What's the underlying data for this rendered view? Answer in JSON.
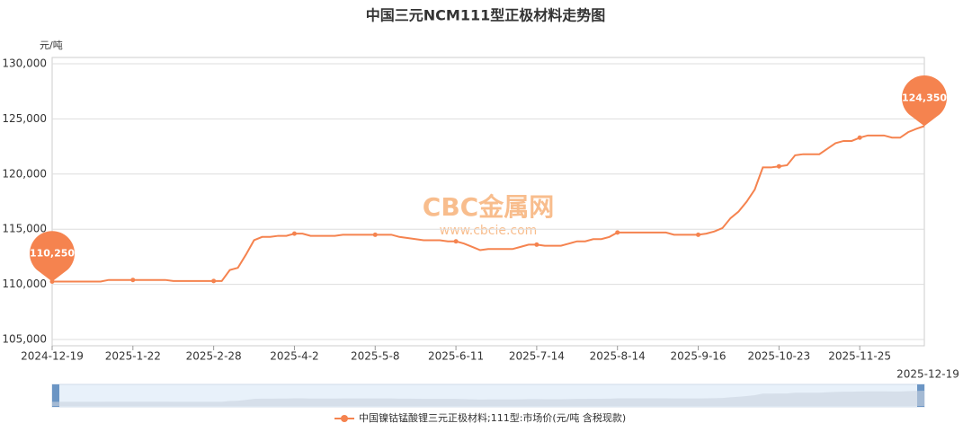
{
  "chart_data": {
    "type": "line",
    "title": "中国三元NCM111型正极材料走势图",
    "y_unit": "元/吨",
    "watermark": "CBC金属网",
    "watermark_url": "www.cbcie.com",
    "grid": true,
    "ylim": [
      105000,
      130000
    ],
    "yticks": [
      {
        "value": 105000,
        "label": "105,000"
      },
      {
        "value": 110000,
        "label": "110,000"
      },
      {
        "value": 115000,
        "label": "115,000"
      },
      {
        "value": 120000,
        "label": "120,000"
      },
      {
        "value": 125000,
        "label": "125,000"
      },
      {
        "value": 130000,
        "label": "130,000"
      }
    ],
    "categories": [
      "2024-12-19",
      null,
      null,
      null,
      null,
      null,
      null,
      null,
      null,
      null,
      "2025-1-22",
      null,
      null,
      null,
      null,
      null,
      null,
      null,
      null,
      null,
      "2025-2-28",
      null,
      null,
      null,
      null,
      null,
      null,
      null,
      null,
      null,
      "2025-4-2",
      null,
      null,
      null,
      null,
      null,
      null,
      null,
      null,
      null,
      "2025-5-8",
      null,
      null,
      null,
      null,
      null,
      null,
      null,
      null,
      null,
      "2025-6-11",
      null,
      null,
      null,
      null,
      null,
      null,
      null,
      null,
      null,
      "2025-7-14",
      null,
      null,
      null,
      null,
      null,
      null,
      null,
      null,
      null,
      "2025-8-14",
      null,
      null,
      null,
      null,
      null,
      null,
      null,
      null,
      null,
      "2025-9-16",
      null,
      null,
      null,
      null,
      null,
      null,
      null,
      null,
      null,
      "2025-10-23",
      null,
      null,
      null,
      null,
      null,
      null,
      null,
      null,
      null,
      "2025-11-25",
      null,
      null,
      null,
      null,
      null,
      null,
      null,
      "2025-12-19"
    ],
    "series": [
      {
        "name": "中国镍钴锰酸锂三元正极材料;111型:市场价(元/吨  含税现款)",
        "color": "#f5834f",
        "values": [
          110250,
          110250,
          110250,
          110250,
          110250,
          110250,
          110250,
          110400,
          110400,
          110400,
          110400,
          110400,
          110400,
          110400,
          110400,
          110300,
          110300,
          110300,
          110300,
          110300,
          110300,
          110300,
          111300,
          111500,
          112700,
          114000,
          114300,
          114300,
          114400,
          114400,
          114600,
          114600,
          114400,
          114400,
          114400,
          114400,
          114500,
          114500,
          114500,
          114500,
          114500,
          114500,
          114500,
          114300,
          114200,
          114100,
          114000,
          114000,
          114000,
          113900,
          113900,
          113700,
          113400,
          113100,
          113200,
          113200,
          113200,
          113200,
          113400,
          113600,
          113600,
          113500,
          113500,
          113500,
          113700,
          113900,
          113900,
          114100,
          114100,
          114300,
          114700,
          114700,
          114700,
          114700,
          114700,
          114700,
          114700,
          114500,
          114500,
          114500,
          114500,
          114600,
          114800,
          115100,
          116000,
          116600,
          117500,
          118600,
          120600,
          120600,
          120700,
          120800,
          121700,
          121800,
          121800,
          121800,
          122300,
          122800,
          123000,
          123000,
          123300,
          123500,
          123500,
          123500,
          123300,
          123300,
          123800,
          124100,
          124350
        ],
        "value_labels": [
          "110,250",
          null,
          null,
          null,
          null,
          null,
          null,
          null,
          null,
          null,
          null,
          null,
          null,
          null,
          null,
          null,
          null,
          null,
          null,
          null,
          null,
          null,
          null,
          null,
          null,
          null,
          null,
          null,
          null,
          null,
          null,
          null,
          null,
          null,
          null,
          null,
          null,
          null,
          null,
          null,
          null,
          null,
          null,
          null,
          null,
          null,
          null,
          null,
          null,
          null,
          null,
          null,
          null,
          null,
          null,
          null,
          null,
          null,
          null,
          null,
          null,
          null,
          null,
          null,
          null,
          null,
          null,
          null,
          null,
          null,
          null,
          null,
          null,
          null,
          null,
          null,
          null,
          null,
          null,
          null,
          null,
          null,
          null,
          null,
          null,
          null,
          null,
          null,
          null,
          null,
          null,
          null,
          null,
          null,
          null,
          null,
          null,
          null,
          null,
          null,
          null,
          null,
          null,
          null,
          null,
          null,
          null,
          null,
          "124,350"
        ]
      }
    ]
  }
}
